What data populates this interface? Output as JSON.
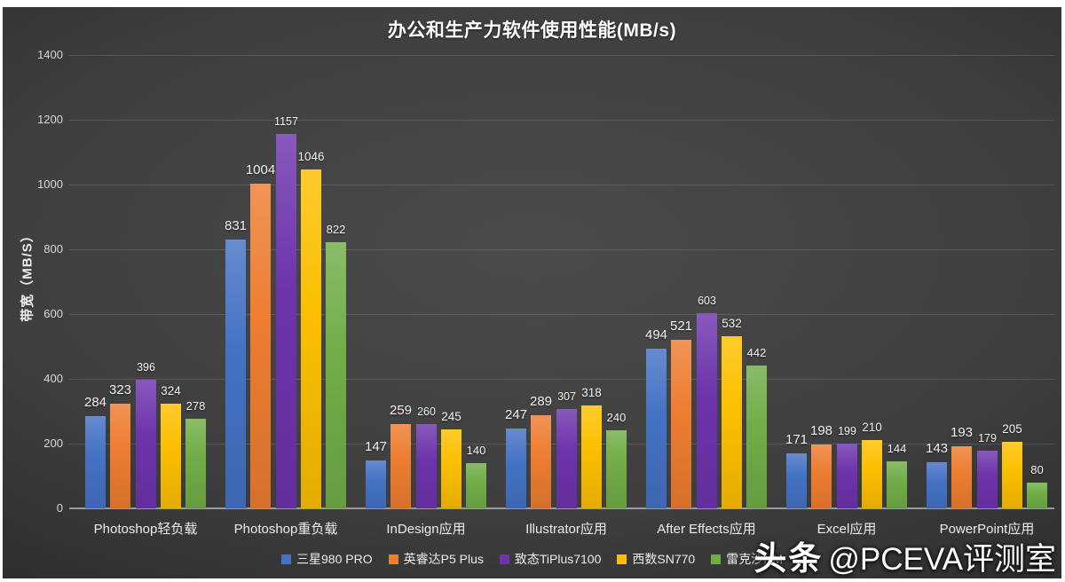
{
  "chart_data": {
    "type": "bar",
    "title": "办公和生产力软件使用性能(MB/s)",
    "xlabel": "",
    "ylabel": "带宽（MB/S）",
    "ylim": [
      0,
      1400
    ],
    "ytick_step": 200,
    "yticks": [
      0,
      200,
      400,
      600,
      800,
      1000,
      1200,
      1400
    ],
    "grid": true,
    "legend_position": "bottom",
    "categories": [
      "Photoshop轻负载",
      "Photoshop重负载",
      "InDesign应用",
      "Illustrator应用",
      "After Effects应用",
      "Excel应用",
      "PowerPoint应用"
    ],
    "series": [
      {
        "name": "三星980 PRO",
        "color": "#4472C4",
        "values": [
          284,
          831,
          147,
          247,
          494,
          171,
          143
        ]
      },
      {
        "name": "英睿达P5 Plus",
        "color": "#ED7D31",
        "values": [
          323,
          1004,
          259,
          289,
          521,
          198,
          193
        ]
      },
      {
        "name": "致态TiPlus7100",
        "color": "#6E34AC",
        "values": [
          396,
          1157,
          260,
          307,
          603,
          199,
          179
        ]
      },
      {
        "name": "西数SN770",
        "color": "#FCBF00",
        "values": [
          324,
          1046,
          245,
          318,
          532,
          210,
          205
        ]
      },
      {
        "name": "雷克沙NM",
        "color": "#70AD47",
        "values": [
          278,
          822,
          140,
          240,
          442,
          144,
          80
        ]
      }
    ]
  },
  "watermark": {
    "brand": "头条",
    "account": "@PCEVA评测室"
  }
}
